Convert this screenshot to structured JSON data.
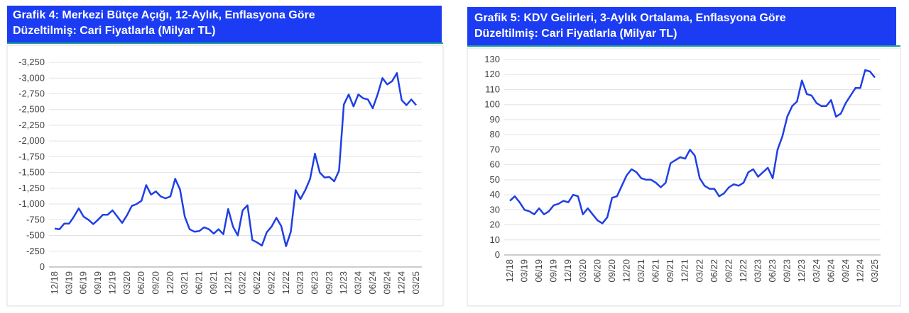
{
  "chart_data": [
    {
      "type": "line",
      "title": [
        "Grafik 4: Merkezi Bütçe Açığı, 12-Aylık, Enflasyona Göre",
        "Düzeltilmiş: Cari Fiyatlarla (Milyar TL)"
      ],
      "categories": [
        "12/18",
        null,
        null,
        "03/19",
        null,
        null,
        "06/19",
        null,
        null,
        "09/19",
        null,
        null,
        "12/19",
        null,
        null,
        "03/20",
        null,
        null,
        "06/20",
        null,
        null,
        "09/20",
        null,
        null,
        "12/20",
        null,
        null,
        "03/21",
        null,
        null,
        "06/21",
        null,
        null,
        "09/21",
        null,
        null,
        "12/21",
        null,
        null,
        "03/22",
        null,
        null,
        "06/22",
        null,
        null,
        "09/22",
        null,
        null,
        "12/22",
        null,
        null,
        "03/23",
        null,
        null,
        "06/23",
        null,
        null,
        "09/23",
        null,
        null,
        "12/23",
        null,
        null,
        "03/24",
        null,
        null,
        "06/24",
        null,
        null,
        "09/24",
        null,
        null,
        "12/24",
        null,
        null,
        "03/25"
      ],
      "series": [
        {
          "color": "#1f3fe6",
          "values": [
            -610,
            -600,
            -690,
            -690,
            -800,
            -930,
            -800,
            -750,
            -680,
            -750,
            -830,
            -830,
            -900,
            -800,
            -700,
            -820,
            -970,
            -1000,
            -1050,
            -1300,
            -1150,
            -1200,
            -1120,
            -1090,
            -1120,
            -1400,
            -1230,
            -800,
            -600,
            -560,
            -570,
            -630,
            -600,
            -530,
            -600,
            -520,
            -920,
            -640,
            -500,
            -900,
            -980,
            -430,
            -390,
            -340,
            -550,
            -640,
            -780,
            -650,
            -330,
            -560,
            -1220,
            -1080,
            -1220,
            -1400,
            -1800,
            -1500,
            -1420,
            -1430,
            -1360,
            -1530,
            -2580,
            -2740,
            -2550,
            -2740,
            -2680,
            -2660,
            -2520,
            -2740,
            -3000,
            -2900,
            -2950,
            -3080,
            -2650,
            -2570,
            -2660,
            -2570
          ]
        }
      ],
      "ylim": [
        0,
        -3400
      ],
      "yticks": [
        0,
        -250,
        -500,
        -750,
        {
          "value": -1000,
          "label": "-1,000"
        },
        {
          "value": -1250,
          "label": "-1,250"
        },
        {
          "value": -1500,
          "label": "-1,500"
        },
        {
          "value": -1750,
          "label": "-1,750"
        },
        {
          "value": -2000,
          "label": "-2,000"
        },
        {
          "value": -2250,
          "label": "-2,250"
        },
        {
          "value": -2500,
          "label": "-2,500"
        },
        {
          "value": -2750,
          "label": "-2,750"
        },
        {
          "value": -3000,
          "label": "-3,000"
        },
        {
          "value": -3250,
          "label": "-3,250"
        }
      ],
      "grid": true
    },
    {
      "type": "line",
      "title": [
        "Grafik 5: KDV Gelirleri, 3-Aylık Ortalama, Enflasyona Göre",
        "Düzeltilmiş: Cari Fiyatlarla (Milyar TL)"
      ],
      "categories": [
        "12/18",
        null,
        null,
        "03/19",
        null,
        null,
        "06/19",
        null,
        null,
        "09/19",
        null,
        null,
        "12/19",
        null,
        null,
        "03/20",
        null,
        null,
        "06/20",
        null,
        null,
        "09/20",
        null,
        null,
        "12/20",
        null,
        null,
        "03/21",
        null,
        null,
        "06/21",
        null,
        null,
        "09/21",
        null,
        null,
        "12/21",
        null,
        null,
        "03/22",
        null,
        null,
        "06/22",
        null,
        null,
        "09/22",
        null,
        null,
        "12/22",
        null,
        null,
        "03/23",
        null,
        null,
        "06/23",
        null,
        null,
        "09/23",
        null,
        null,
        "12/23",
        null,
        null,
        "03/24",
        null,
        null,
        "06/24",
        null,
        null,
        "09/24",
        null,
        null,
        "12/24",
        null,
        null,
        "03/25"
      ],
      "series": [
        {
          "color": "#1f3fe6",
          "values": [
            36,
            39,
            35,
            30,
            29,
            27,
            31,
            27,
            29,
            33,
            34,
            36,
            35,
            40,
            39,
            27,
            31,
            27,
            23,
            21,
            25,
            38,
            39,
            46,
            53,
            57,
            55,
            51,
            50,
            50,
            48,
            45,
            48,
            61,
            63,
            65,
            64,
            70,
            66,
            51,
            46,
            44,
            44,
            39,
            41,
            45,
            47,
            46,
            48,
            55,
            57,
            52,
            55,
            58,
            51,
            70,
            79,
            92,
            99,
            102,
            116,
            107,
            106,
            101,
            99,
            99,
            103,
            92,
            94,
            101,
            106,
            111,
            111,
            123,
            122,
            118
          ]
        }
      ],
      "ylim": [
        0,
        130
      ],
      "yticks": [
        0,
        10,
        20,
        30,
        40,
        50,
        60,
        70,
        80,
        90,
        100,
        110,
        120,
        130
      ],
      "grid": true
    }
  ]
}
